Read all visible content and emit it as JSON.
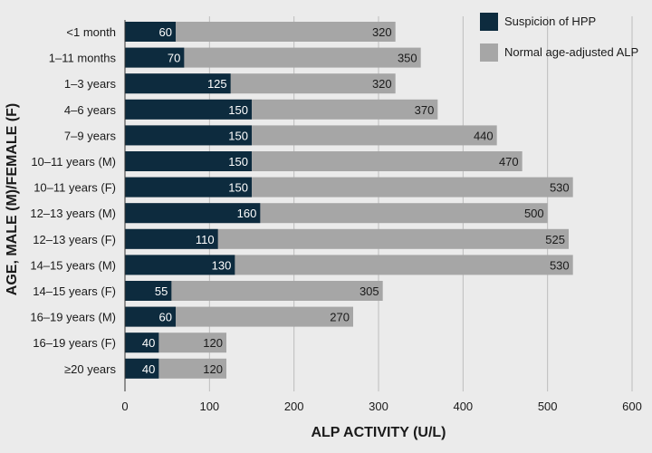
{
  "chart_data": {
    "type": "bar",
    "orientation": "horizontal",
    "layout": "overlapping",
    "xlabel": "ALP ACTIVITY (U/L)",
    "ylabel": "AGE, MALE (M)/FEMALE (F)",
    "xlim": [
      0,
      600
    ],
    "xticks": [
      0,
      100,
      200,
      300,
      400,
      500,
      600
    ],
    "grid": "vertical",
    "legend_position": "top-right",
    "categories": [
      "<1 month",
      "1–11 months",
      "1–3 years",
      "4–6 years",
      "7–9 years",
      "10–11 years (M)",
      "10–11 years (F)",
      "12–13 years (M)",
      "12–13 years (F)",
      "14–15 years (M)",
      "14–15 years (F)",
      "16–19 years (M)",
      "16–19 years (F)",
      "≥20 years"
    ],
    "series": [
      {
        "name": "Suspicion of HPP",
        "color": "#0d2b3e",
        "values": [
          60,
          70,
          125,
          150,
          150,
          150,
          150,
          160,
          110,
          130,
          55,
          60,
          40,
          40
        ]
      },
      {
        "name": "Normal age-adjusted ALP",
        "color": "#a6a6a6",
        "values": [
          320,
          350,
          320,
          370,
          440,
          470,
          530,
          500,
          525,
          530,
          305,
          270,
          120,
          120
        ]
      }
    ],
    "colors": {
      "background": "#ebebeb",
      "grid": "#bdbdbd",
      "label_on_dark": "#ffffff",
      "label_on_light": "#1a1a1a"
    }
  }
}
